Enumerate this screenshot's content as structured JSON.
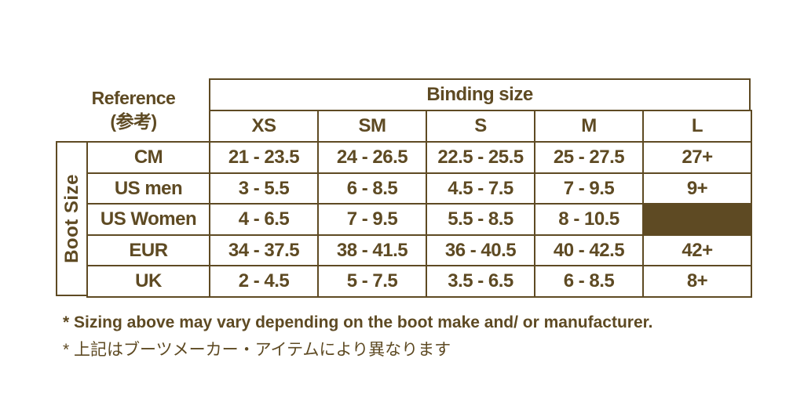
{
  "reference": {
    "label": "Reference",
    "sub": "(参考)"
  },
  "header": {
    "title": "Binding size",
    "sizes": [
      "XS",
      "SM",
      "S",
      "M",
      "L"
    ]
  },
  "side_label": "Boot Size",
  "rows": [
    {
      "label": "CM",
      "values": [
        "21 - 23.5",
        "24 - 26.5",
        "22.5 - 25.5",
        "25 - 27.5",
        "27+"
      ]
    },
    {
      "label": "US men",
      "values": [
        "3 - 5.5",
        "6 - 8.5",
        "4.5 - 7.5",
        "7 - 9.5",
        "9+"
      ]
    },
    {
      "label": "US Women",
      "values": [
        "4 - 6.5",
        "7 - 9.5",
        "5.5 - 8.5",
        "8 - 10.5",
        ""
      ]
    },
    {
      "label": "EUR",
      "values": [
        "34 - 37.5",
        "38 - 41.5",
        "36 - 40.5",
        "40 - 42.5",
        "42+"
      ]
    },
    {
      "label": "UK",
      "values": [
        "2 - 4.5",
        "5 - 7.5",
        "3.5 - 6.5",
        "6 - 8.5",
        "8+"
      ]
    }
  ],
  "notes": [
    "* Sizing above may vary depending on the boot make and/ or manufacturer.",
    "* 上記はブーツメーカー・アイテムにより異なります"
  ],
  "colors": {
    "primary": "#5e4a23",
    "empty_cell": "#5e4a23"
  }
}
